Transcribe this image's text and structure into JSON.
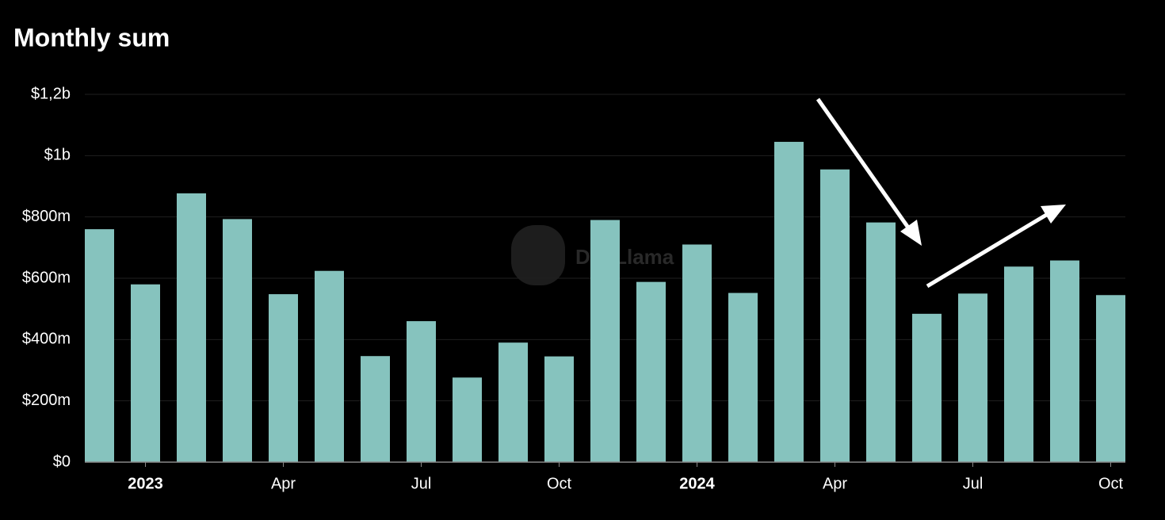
{
  "chart_data": {
    "type": "bar",
    "title": "Monthly sum",
    "watermark": "DefiLlama",
    "categories": [
      null,
      "2023",
      null,
      null,
      "Apr",
      null,
      null,
      "Jul",
      null,
      null,
      "Oct",
      null,
      null,
      "2024",
      null,
      null,
      "Apr",
      null,
      null,
      "Jul",
      null,
      null,
      "Oct"
    ],
    "values": [
      760000000,
      580000000,
      877000000,
      793000000,
      548000000,
      624000000,
      346000000,
      460000000,
      276000000,
      390000000,
      345000000,
      790000000,
      588000000,
      710000000,
      552000000,
      1045000000,
      955000000,
      782000000,
      484000000,
      550000000,
      638000000,
      658000000,
      545000000
    ],
    "color": "#86c3be",
    "ylim": [
      0,
      1200000000
    ],
    "yticks": [
      {
        "value": 0,
        "label": "$0"
      },
      {
        "value": 200000000,
        "label": "$200m"
      },
      {
        "value": 400000000,
        "label": "$400m"
      },
      {
        "value": 600000000,
        "label": "$600m"
      },
      {
        "value": 800000000,
        "label": "$800m"
      },
      {
        "value": 1000000000,
        "label": "$1b"
      },
      {
        "value": 1200000000,
        "label": "$1,2b"
      }
    ],
    "grid": true
  }
}
